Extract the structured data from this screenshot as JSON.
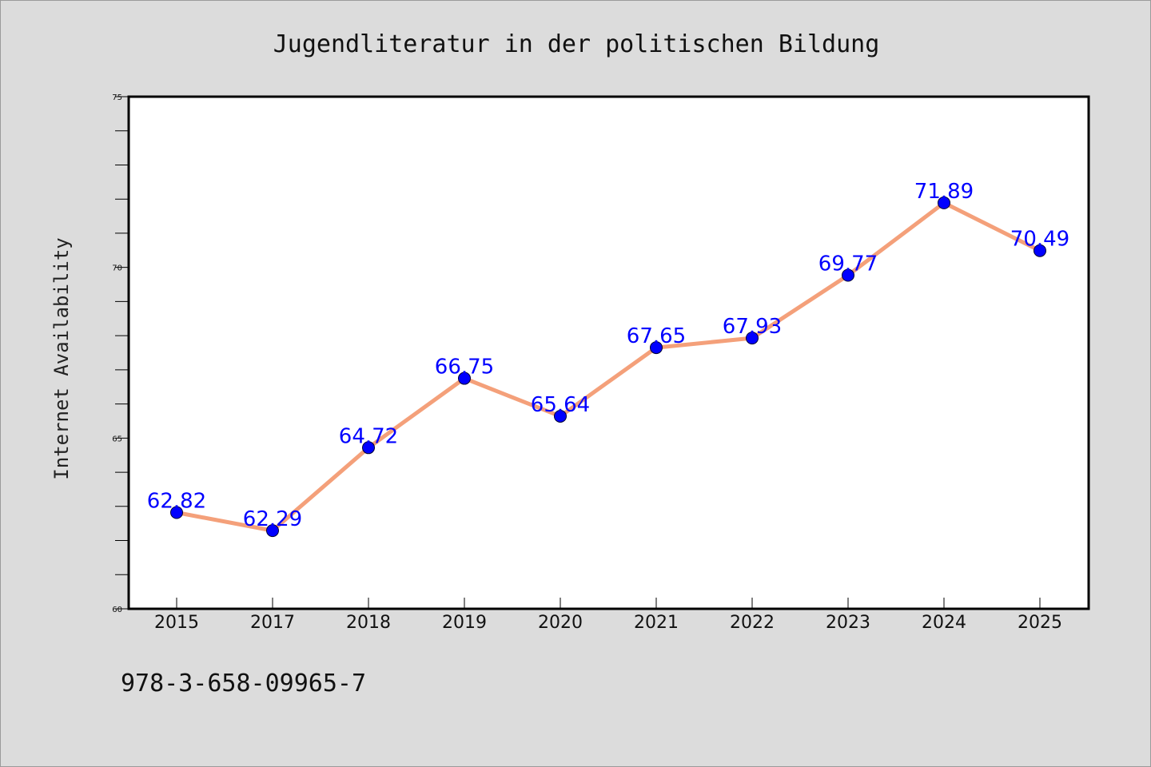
{
  "chart_data": {
    "type": "line",
    "title": "Jugendliteratur in der politischen Bildung",
    "ylabel": "Internet Availability",
    "xlabel": "",
    "categories": [
      "2015",
      "2017",
      "2018",
      "2019",
      "2020",
      "2021",
      "2022",
      "2023",
      "2024",
      "2025"
    ],
    "series": [
      {
        "values": [
          62.82,
          62.29,
          64.72,
          66.75,
          65.64,
          67.65,
          67.93,
          69.77,
          71.89,
          70.49
        ],
        "data_labels": [
          "62.82",
          "62.29",
          "64.72",
          "66.75",
          "65.64",
          "67.65",
          "67.93",
          "69.77",
          "71.89",
          "70.49"
        ],
        "line_color": "#f4a07a",
        "marker_color": "#0000ff",
        "label_color": "#0000ff"
      }
    ],
    "ylim": [
      60,
      75
    ],
    "yticks": [
      "60",
      "65",
      "70",
      "75"
    ],
    "grid": false,
    "legend": "none"
  },
  "footer": {
    "isbn": "978-3-658-09965-7"
  },
  "colors": {
    "background": "#dcdcdc",
    "plot_background": "#ffffff",
    "axis": "#000000"
  }
}
